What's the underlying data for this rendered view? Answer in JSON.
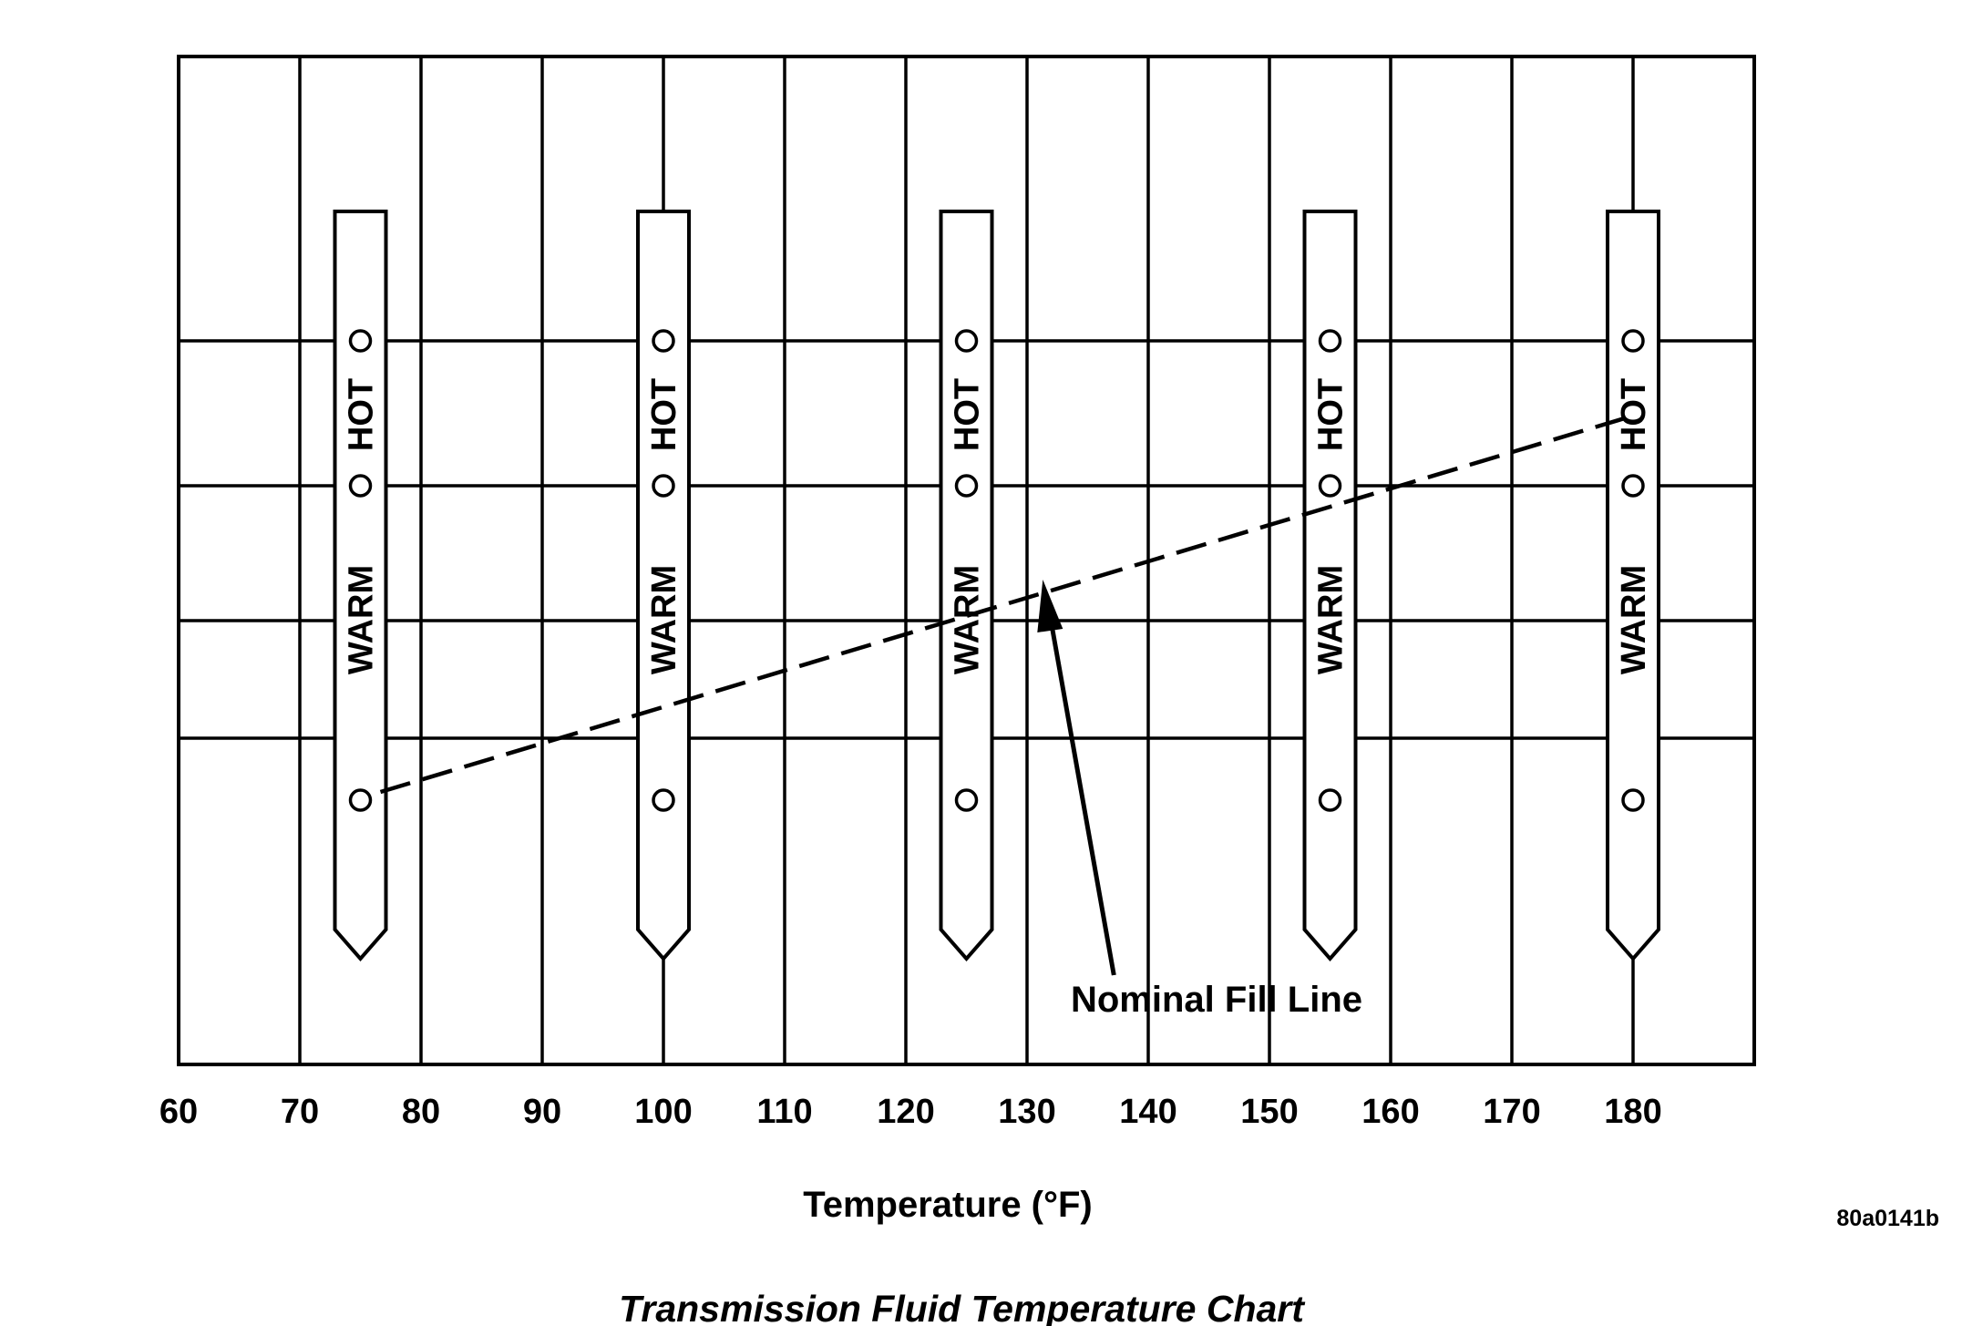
{
  "chart_data": {
    "type": "line",
    "title": "Transmission Fluid Temperature Chart",
    "xlabel": "Temperature (°F)",
    "ylabel": "",
    "x_ticks": [
      60,
      70,
      80,
      90,
      100,
      110,
      120,
      130,
      140,
      150,
      160,
      170,
      180
    ],
    "xlim": [
      60,
      190
    ],
    "grid": true,
    "dipstick_temperatures": [
      75,
      100,
      125,
      155,
      180
    ],
    "dipstick_labels": {
      "hot": "HOT",
      "warm": "WARM"
    },
    "series": [
      {
        "name": "Nominal Fill Line",
        "style": "dashed",
        "x": [
          75,
          180
        ],
        "y": [
          0,
          2.7
        ]
      }
    ],
    "annotations": [
      {
        "text": "Nominal Fill Line",
        "points_to_x": 131
      }
    ],
    "figure_id": "80a0141b"
  }
}
